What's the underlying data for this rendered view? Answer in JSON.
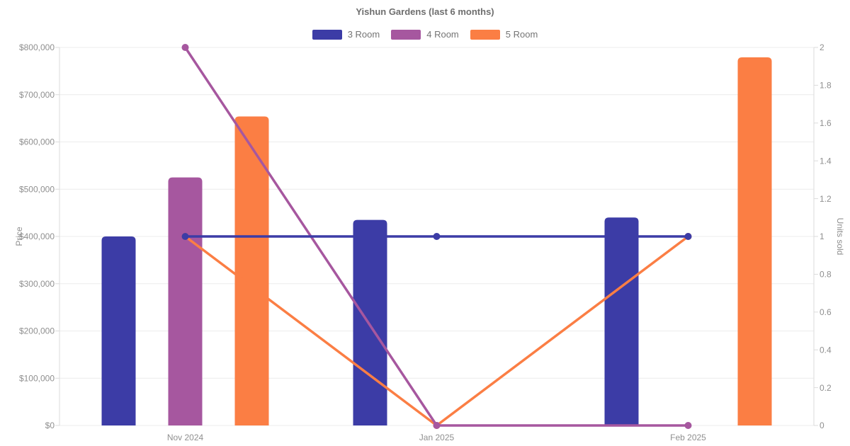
{
  "chart_data": {
    "type": "bar+line",
    "title": "Yishun Gardens (last 6 months)",
    "categories": [
      "Nov 2024",
      "Jan 2025",
      "Feb 2025"
    ],
    "left_axis": {
      "label": "Price",
      "min": 0,
      "max": 800000,
      "step": 100000,
      "tick_labels": [
        "$0",
        "$100,000",
        "$200,000",
        "$300,000",
        "$400,000",
        "$500,000",
        "$600,000",
        "$700,000",
        "$800,000"
      ]
    },
    "right_axis": {
      "label": "Units sold",
      "min": 0,
      "max": 2,
      "step": 0.2,
      "tick_labels": [
        "0",
        "0.2",
        "0.4",
        "0.6",
        "0.8",
        "1",
        "1.2",
        "1.4",
        "1.6",
        "1.8",
        "2"
      ]
    },
    "series": [
      {
        "name": "3 Room",
        "color": "#3C3CA6",
        "prices": [
          400000,
          435000,
          440000
        ],
        "units_sold": [
          1,
          1,
          1
        ]
      },
      {
        "name": "4 Room",
        "color": "#A6579F",
        "prices": [
          525000,
          null,
          null
        ],
        "units_sold": [
          2,
          0,
          0
        ]
      },
      {
        "name": "5 Room",
        "color": "#FB7E44",
        "prices": [
          654000,
          null,
          779000
        ],
        "units_sold": [
          1,
          0,
          1
        ]
      }
    ],
    "legend": {
      "position": "top",
      "items": [
        "3 Room",
        "4 Room",
        "5 Room"
      ]
    },
    "grid": true,
    "bars_axis": "left (Price)",
    "lines_axis": "right (Units sold)"
  },
  "colors": {
    "background": "#ffffff",
    "gridline": "#ececec",
    "axis_line": "#dbdbdb",
    "tick_text": "#8f8f8f",
    "title_text": "#6e6e6e",
    "legend_text": "#757575"
  }
}
